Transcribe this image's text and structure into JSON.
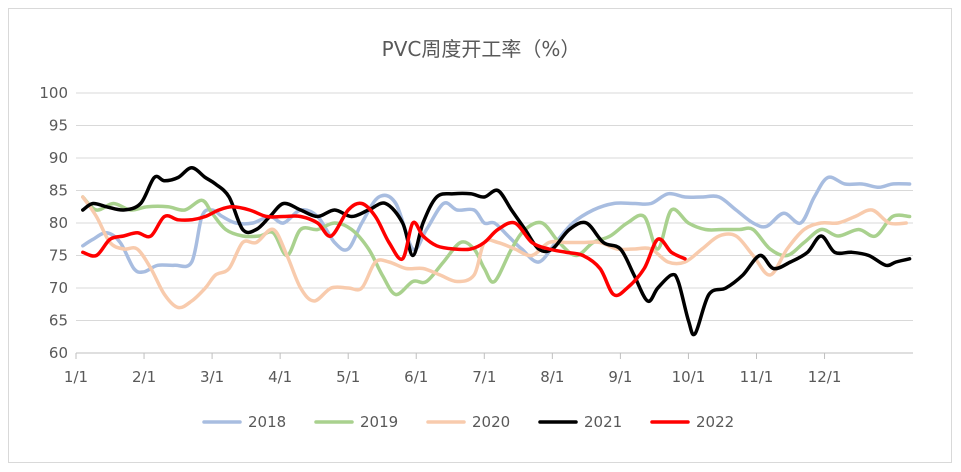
{
  "chart_data": {
    "type": "line",
    "title": "PVC周度开工率（%）",
    "xlabel": "",
    "ylabel": "",
    "ylim": [
      60,
      100
    ],
    "yticks": [
      60,
      65,
      70,
      75,
      80,
      85,
      90,
      95,
      100
    ],
    "x_axis": {
      "type": "month",
      "range": [
        1,
        13.3
      ],
      "tick_months": [
        1,
        2,
        3,
        4,
        5,
        6,
        7,
        8,
        9,
        10,
        11,
        12
      ]
    },
    "categories": [
      "1/1",
      "2/1",
      "3/1",
      "4/1",
      "5/1",
      "6/1",
      "7/1",
      "8/1",
      "9/1",
      "10/1",
      "11/1",
      "12/1"
    ],
    "grid": "horizontal",
    "legend": "bottom",
    "series": [
      {
        "name": "2018",
        "color": "#a8bde0",
        "x": [
          1.1,
          1.25,
          1.45,
          1.65,
          1.85,
          2.0,
          2.2,
          2.45,
          2.7,
          2.85,
          3.0,
          3.15,
          3.35,
          3.6,
          3.85,
          4.05,
          4.3,
          4.55,
          4.8,
          5.0,
          5.2,
          5.45,
          5.7,
          5.95,
          6.15,
          6.4,
          6.6,
          6.85,
          7.0,
          7.15,
          7.35,
          7.55,
          7.8,
          8.05,
          8.3,
          8.6,
          8.9,
          9.2,
          9.45,
          9.7,
          9.95,
          10.2,
          10.45,
          10.7,
          10.95,
          11.15,
          11.4,
          11.65,
          11.85,
          12.05,
          12.3,
          12.55,
          12.8,
          13.0,
          13.25
        ],
        "y": [
          76.5,
          77.5,
          78.5,
          77,
          73,
          72.5,
          73.5,
          73.5,
          74,
          81,
          82,
          81,
          80,
          80,
          81,
          80,
          82,
          81,
          77,
          76,
          80,
          84,
          83,
          76,
          79,
          83,
          82,
          82,
          80,
          80,
          78,
          76,
          74,
          77,
          80,
          82,
          83,
          83,
          83,
          84.5,
          84,
          84,
          84,
          82,
          80,
          79.5,
          81.5,
          80,
          84,
          87,
          86,
          86,
          85.5,
          86,
          86
        ]
      },
      {
        "name": "2019",
        "color": "#a9d18e",
        "x": [
          1.1,
          1.3,
          1.55,
          1.8,
          2.05,
          2.35,
          2.6,
          2.85,
          3.0,
          3.2,
          3.45,
          3.7,
          3.9,
          4.1,
          4.3,
          4.55,
          4.8,
          5.05,
          5.3,
          5.5,
          5.7,
          5.95,
          6.15,
          6.4,
          6.65,
          6.85,
          7.0,
          7.15,
          7.4,
          7.6,
          7.85,
          8.1,
          8.35,
          8.6,
          8.85,
          9.1,
          9.35,
          9.55,
          9.75,
          10.0,
          10.25,
          10.5,
          10.75,
          10.95,
          11.2,
          11.45,
          11.7,
          11.95,
          12.2,
          12.5,
          12.75,
          13.0,
          13.25
        ],
        "y": [
          84,
          82,
          83,
          82,
          82.5,
          82.5,
          82,
          83.5,
          81.5,
          79,
          78,
          78,
          78.5,
          75,
          79,
          79,
          80,
          79,
          76,
          72,
          69,
          71,
          71,
          74,
          77,
          76,
          73,
          71,
          76,
          79,
          80,
          77,
          75,
          77,
          78,
          80,
          81,
          76,
          82,
          80,
          79,
          79,
          79,
          79,
          76,
          75,
          77,
          79,
          78,
          79,
          78,
          81,
          81
        ]
      },
      {
        "name": "2020",
        "color": "#f8cbad",
        "x": [
          1.1,
          1.3,
          1.5,
          1.7,
          1.9,
          2.1,
          2.3,
          2.5,
          2.7,
          2.9,
          3.05,
          3.25,
          3.45,
          3.65,
          3.9,
          4.1,
          4.3,
          4.5,
          4.75,
          5.0,
          5.2,
          5.4,
          5.6,
          5.85,
          6.1,
          6.35,
          6.6,
          6.85,
          7.0,
          7.2,
          7.45,
          7.7,
          7.95,
          8.2,
          8.45,
          8.7,
          8.95,
          9.2,
          9.45,
          9.7,
          9.95,
          10.2,
          10.45,
          10.7,
          10.95,
          11.2,
          11.45,
          11.7,
          11.95,
          12.2,
          12.45,
          12.7,
          12.95,
          13.2
        ],
        "y": [
          84,
          81,
          77,
          76,
          76,
          73,
          69,
          67,
          68,
          70,
          72,
          73,
          77,
          77,
          79,
          75,
          70,
          68,
          70,
          70,
          70,
          74,
          74,
          73,
          73,
          72,
          71,
          72,
          77,
          77,
          76,
          75,
          77,
          77,
          77,
          77,
          76,
          76,
          76,
          74,
          74,
          76,
          78,
          78,
          75,
          72,
          76,
          79,
          80,
          80,
          81,
          82,
          80,
          80
        ]
      },
      {
        "name": "2021",
        "color": "#000000",
        "x": [
          1.1,
          1.25,
          1.45,
          1.7,
          1.95,
          2.15,
          2.3,
          2.5,
          2.7,
          2.9,
          3.05,
          3.25,
          3.45,
          3.65,
          3.85,
          4.05,
          4.3,
          4.55,
          4.8,
          5.05,
          5.3,
          5.55,
          5.8,
          5.95,
          6.1,
          6.3,
          6.55,
          6.8,
          7.0,
          7.2,
          7.4,
          7.6,
          7.8,
          8.0,
          8.25,
          8.5,
          8.75,
          9.0,
          9.2,
          9.4,
          9.55,
          9.75,
          9.85,
          10.0,
          10.1,
          10.3,
          10.55,
          10.8,
          11.05,
          11.25,
          11.5,
          11.75,
          11.95,
          12.15,
          12.4,
          12.65,
          12.9,
          13.05,
          13.25
        ],
        "y": [
          82,
          83,
          82.5,
          82,
          83,
          87,
          86.5,
          87,
          88.5,
          87,
          86,
          84,
          79,
          79,
          81,
          83,
          82,
          81,
          82,
          81,
          82,
          83,
          80,
          75,
          80,
          84,
          84.5,
          84.5,
          84,
          85,
          82,
          79,
          76,
          76,
          79,
          80,
          77,
          76,
          72,
          68,
          70,
          72,
          71,
          65,
          63,
          69,
          70,
          72,
          75,
          73,
          74,
          75.5,
          78,
          75.5,
          75.5,
          75,
          73.5,
          74,
          74.5
        ]
      },
      {
        "name": "2022",
        "color": "#ff0000",
        "x": [
          1.1,
          1.3,
          1.5,
          1.7,
          1.9,
          2.1,
          2.3,
          2.5,
          2.7,
          2.9,
          3.1,
          3.3,
          3.55,
          3.8,
          4.05,
          4.3,
          4.55,
          4.75,
          5.0,
          5.2,
          5.4,
          5.6,
          5.8,
          5.95,
          6.1,
          6.3,
          6.55,
          6.8,
          7.0,
          7.2,
          7.45,
          7.7,
          7.95,
          8.2,
          8.45,
          8.7,
          8.9,
          9.1,
          9.35,
          9.55,
          9.75,
          9.95
        ],
        "y": [
          75.5,
          75,
          77.5,
          78,
          78.5,
          78,
          81,
          80.5,
          80.5,
          81,
          82,
          82.5,
          82,
          81,
          81,
          81,
          80,
          78,
          82,
          83,
          81,
          77,
          74.5,
          80,
          78,
          76.5,
          76,
          76,
          77,
          79,
          80,
          77,
          76,
          75.5,
          75,
          73,
          69,
          70,
          73,
          77.5,
          75.5,
          74.5
        ]
      }
    ]
  }
}
